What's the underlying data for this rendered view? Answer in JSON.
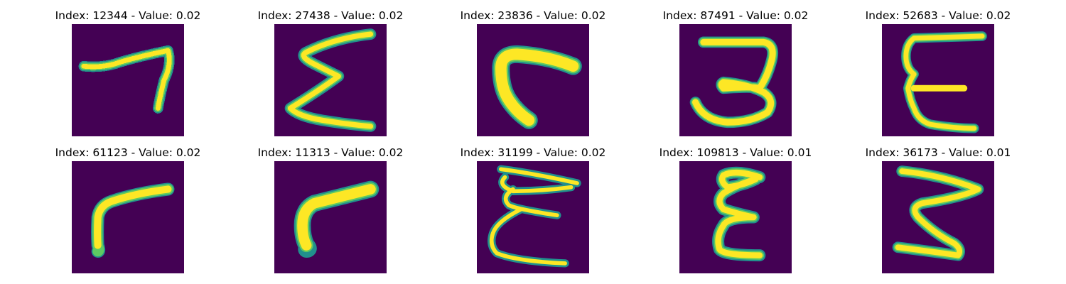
{
  "figure": {
    "colors": {
      "background": "#440154",
      "stroke_outer": "#21908d",
      "stroke_mid": "#5ec962",
      "stroke_core": "#fde725"
    },
    "panels": [
      {
        "title": "Index: 12344 - Value: 0.02"
      },
      {
        "title": "Index: 27438 - Value: 0.02"
      },
      {
        "title": "Index: 23836 - Value: 0.02"
      },
      {
        "title": "Index: 87491 - Value: 0.02"
      },
      {
        "title": "Index: 52683 - Value: 0.02"
      },
      {
        "title": "Index: 61123 - Value: 0.02"
      },
      {
        "title": "Index: 11313 - Value: 0.02"
      },
      {
        "title": "Index: 31199 - Value: 0.02"
      },
      {
        "title": "Index: 109813 - Value: 0.01"
      },
      {
        "title": "Index: 36173 - Value: 0.01"
      }
    ]
  }
}
